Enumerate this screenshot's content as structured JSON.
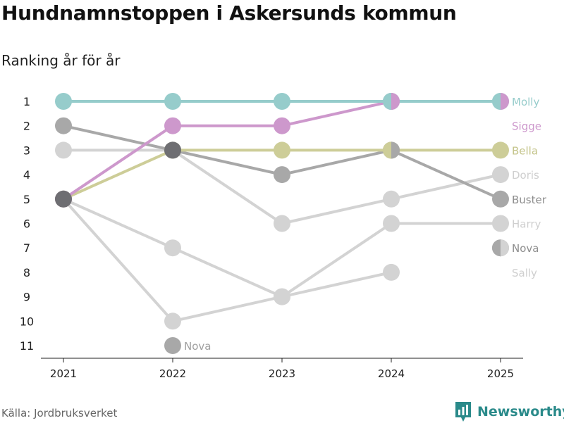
{
  "header": {
    "title": "Hundnamnstoppen i Askersunds kommun",
    "subtitle": "Ranking år för år"
  },
  "footer": {
    "source": "Källa: Jordbruksverket",
    "brand": "Newsworthy"
  },
  "icons": {
    "brand_logo": "newsworthy-logo-icon"
  },
  "chart_data": {
    "type": "line",
    "x": [
      "2021",
      "2022",
      "2023",
      "2024",
      "2025"
    ],
    "y_ticks": [
      "1",
      "2",
      "3",
      "4",
      "5",
      "6",
      "7",
      "8",
      "9",
      "10",
      "11"
    ],
    "ylim": [
      1,
      11
    ],
    "y_reversed": true,
    "grid": false,
    "series": [
      {
        "name": "Molly",
        "color": "#96cccb",
        "values": [
          1,
          1,
          1,
          1,
          1
        ]
      },
      {
        "name": "Sigge",
        "color": "#cd98cc",
        "values": [
          5,
          2,
          2,
          1,
          null
        ]
      },
      {
        "name": "Bella",
        "color": "#cdcd98",
        "values": [
          5,
          3,
          3,
          3,
          3
        ]
      },
      {
        "name": "Doris",
        "color": "#d3d3d3",
        "values": [
          3,
          3,
          6,
          5,
          4
        ]
      },
      {
        "name": "Buster",
        "color": "#a8a8a8",
        "values": [
          2,
          3,
          4,
          3,
          5
        ]
      },
      {
        "name": "Harry",
        "color": "#d3d3d3",
        "values": [
          5,
          7,
          9,
          6,
          6
        ]
      },
      {
        "name": "Sally",
        "color": "#d3d3d3",
        "values": [
          5,
          10,
          9,
          8,
          null
        ]
      },
      {
        "name": "Nova",
        "color": "#a8a8a8",
        "values": [
          null,
          11,
          null,
          null,
          7
        ]
      }
    ],
    "highlight_point": {
      "x": "2021",
      "value": 5,
      "color": "#6e6e72"
    },
    "highlight_point_2": {
      "x": "2022",
      "value": 3,
      "color": "#6e6e72"
    },
    "labels": [
      {
        "text": "Molly",
        "x": "2025",
        "value": 1,
        "color": "#96cccb"
      },
      {
        "text": "Sigge",
        "x": "2025",
        "value": 2,
        "color": "#cd98cc"
      },
      {
        "text": "Bella",
        "x": "2025",
        "value": 3,
        "color": "#c4c48a"
      },
      {
        "text": "Doris",
        "x": "2025",
        "value": 4,
        "color": "#cfcfcf"
      },
      {
        "text": "Buster",
        "x": "2025",
        "value": 5,
        "color": "#8e8e8e"
      },
      {
        "text": "Harry",
        "x": "2025",
        "value": 6,
        "color": "#cfcfcf"
      },
      {
        "text": "Nova",
        "x": "2025",
        "value": 7,
        "color": "#8e8e8e"
      },
      {
        "text": "Sally",
        "x": "2025",
        "value": 8,
        "color": "#cfcfcf"
      },
      {
        "text": "Nova",
        "x": "2022",
        "value": 11,
        "color": "#a0a0a0"
      }
    ]
  }
}
